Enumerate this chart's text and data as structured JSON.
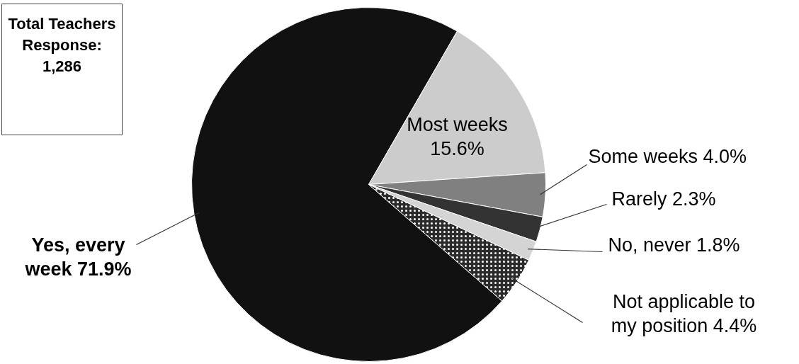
{
  "chart_data": {
    "type": "pie",
    "categories": [
      "Yes, every week",
      "Most weeks",
      "Some weeks",
      "Rarely",
      "No, never",
      "Not applicable to my position"
    ],
    "values": [
      71.9,
      15.6,
      4.0,
      2.3,
      1.8,
      4.4
    ],
    "value_labels": [
      "71.9%",
      "15.6%",
      "4.0%",
      "2.3%",
      "1.8%",
      "4.4%"
    ],
    "colors": [
      "#111111",
      "#cccccc",
      "#808080",
      "#333333",
      "#d4d4d4",
      "#2b2b2b"
    ],
    "annotations": [
      "Total Teachers Response: 1,286"
    ]
  }
}
